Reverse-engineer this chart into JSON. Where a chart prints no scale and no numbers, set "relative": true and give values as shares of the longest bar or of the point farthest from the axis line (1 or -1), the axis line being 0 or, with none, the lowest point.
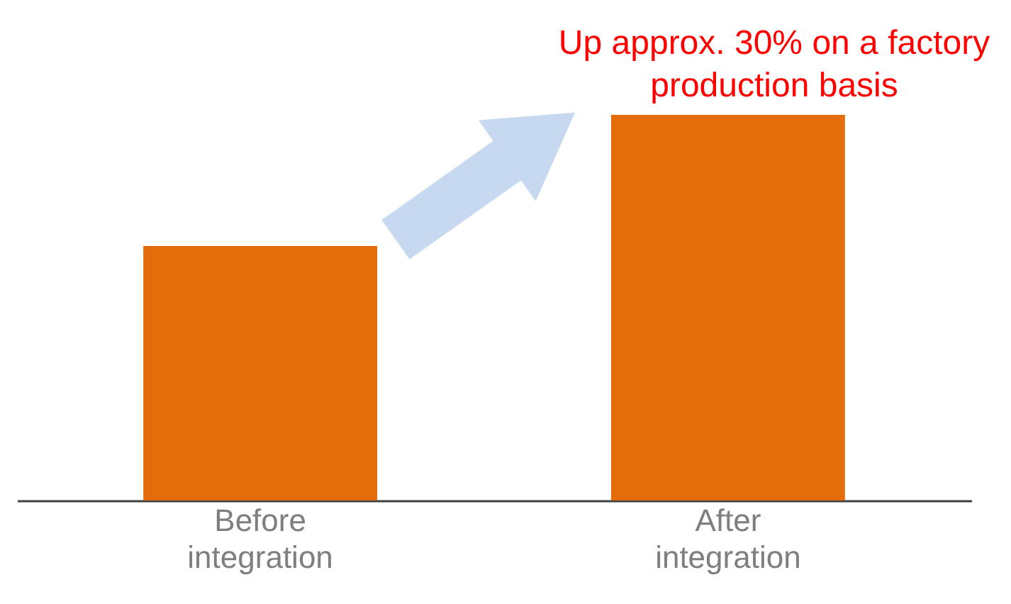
{
  "chart_data": {
    "type": "bar",
    "relative": true,
    "categories": [
      "Before integration",
      "After integration"
    ],
    "values": [
      0.66,
      1
    ],
    "color": "#e46c0a",
    "annotations": [
      "Up approx. 30% on a factory production basis"
    ]
  }
}
